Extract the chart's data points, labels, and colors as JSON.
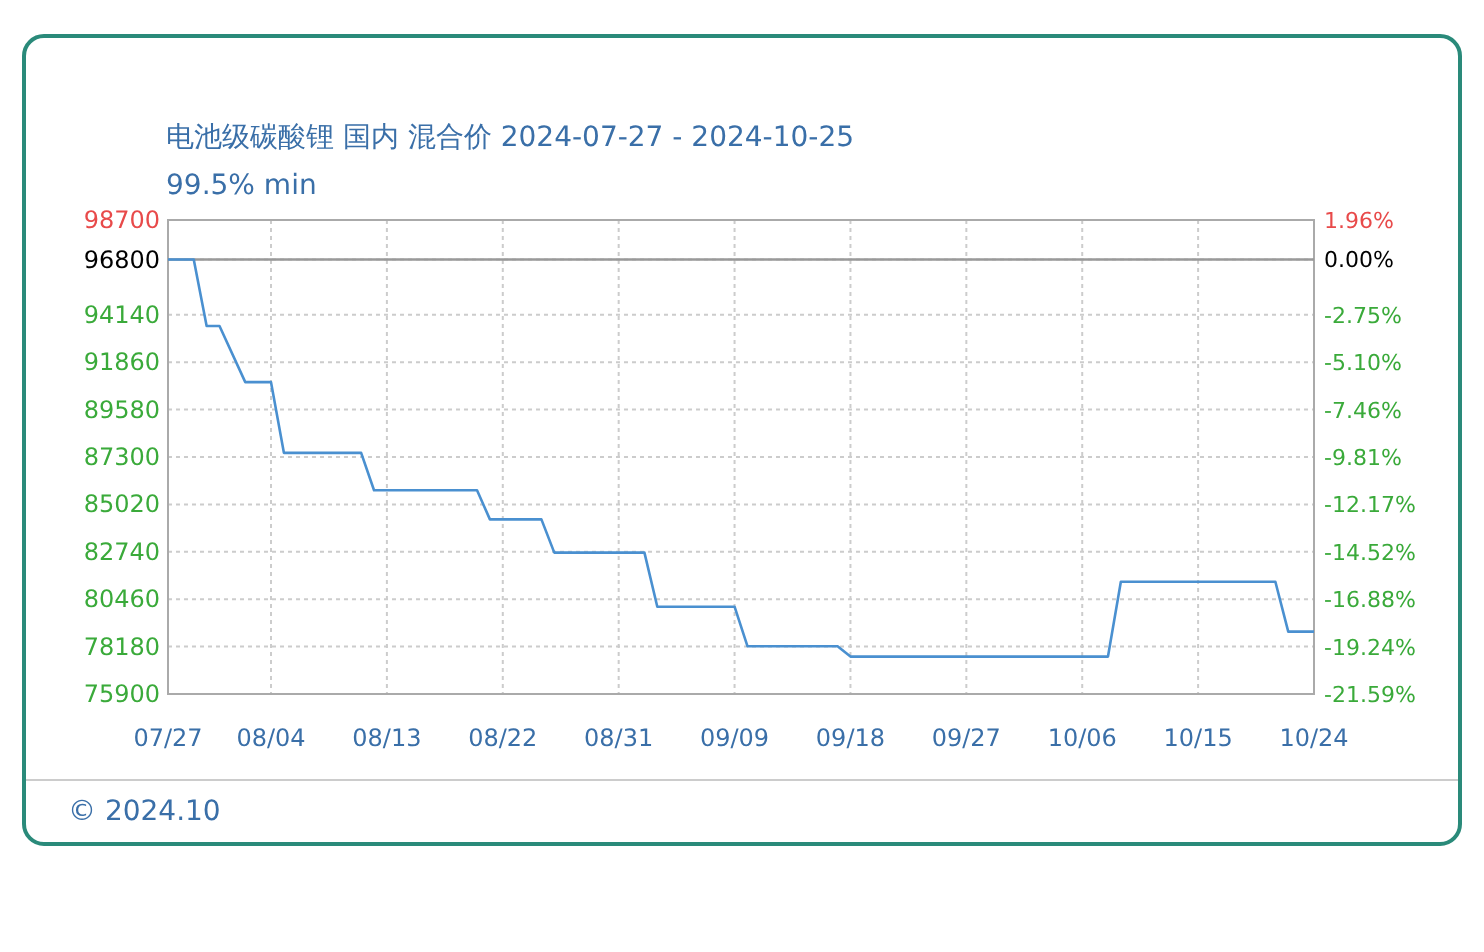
{
  "chart_data": {
    "type": "step",
    "title": "电池级碳酸锂 国内 混合价 2024-07-27 - 2024-10-25",
    "subtitle": "99.5% min",
    "annotations": [
      "© 2024.10"
    ],
    "series": [
      {
        "color": "#4a90d0",
        "x": [
          "2024-07-27",
          "2024-07-29",
          "2024-07-30",
          "2024-07-31",
          "2024-08-02",
          "2024-08-04",
          "2024-08-05",
          "2024-08-11",
          "2024-08-12",
          "2024-08-20",
          "2024-08-21",
          "2024-08-25",
          "2024-08-26",
          "2024-09-02",
          "2024-09-03",
          "2024-09-09",
          "2024-09-10",
          "2024-09-17",
          "2024-09-18",
          "2024-10-08",
          "2024-10-09",
          "2024-10-21",
          "2024-10-22",
          "2024-10-24"
        ],
        "values": [
          96800,
          96800,
          93600,
          93600,
          90900,
          90900,
          87500,
          87500,
          85700,
          85700,
          84300,
          84300,
          82700,
          82700,
          80100,
          80100,
          78200,
          78200,
          77700,
          77700,
          81300,
          81300,
          78900,
          78900
        ]
      }
    ],
    "xlim": [
      "2024-07-27",
      "2024-10-24"
    ],
    "xticks": [
      {
        "value": "2024-07-27",
        "label": "07/27"
      },
      {
        "value": "2024-08-04",
        "label": "08/04"
      },
      {
        "value": "2024-08-13",
        "label": "08/13"
      },
      {
        "value": "2024-08-22",
        "label": "08/22"
      },
      {
        "value": "2024-08-31",
        "label": "08/31"
      },
      {
        "value": "2024-09-09",
        "label": "09/09"
      },
      {
        "value": "2024-09-18",
        "label": "09/18"
      },
      {
        "value": "2024-09-27",
        "label": "09/27"
      },
      {
        "value": "2024-10-06",
        "label": "10/06"
      },
      {
        "value": "2024-10-15",
        "label": "10/15"
      },
      {
        "value": "2024-10-24",
        "label": "10/24"
      }
    ],
    "ylim": [
      75900,
      98700
    ],
    "yticks": [
      75900,
      78180,
      80460,
      82740,
      85020,
      87300,
      89580,
      91860,
      94140,
      96800,
      98700
    ],
    "y2lim": [
      -21.59,
      1.96
    ],
    "y2ticks": [
      {
        "value": -21.59,
        "label": "-21.59%"
      },
      {
        "value": -19.24,
        "label": "-19.24%"
      },
      {
        "value": -16.88,
        "label": "-16.88%"
      },
      {
        "value": -14.52,
        "label": "-14.52%"
      },
      {
        "value": -12.17,
        "label": "-12.17%"
      },
      {
        "value": -9.81,
        "label": "-9.81%"
      },
      {
        "value": -7.46,
        "label": "-7.46%"
      },
      {
        "value": -5.1,
        "label": "-5.10%"
      },
      {
        "value": -2.75,
        "label": "-2.75%"
      },
      {
        "value": 0,
        "label": "0.00%"
      },
      {
        "value": 1.96,
        "label": "1.96%"
      }
    ],
    "ref_lines": [
      {
        "axis": "y",
        "value": 96800,
        "color": "#999999"
      }
    ],
    "grid": true,
    "line_style": "solid",
    "marker": "none"
  }
}
